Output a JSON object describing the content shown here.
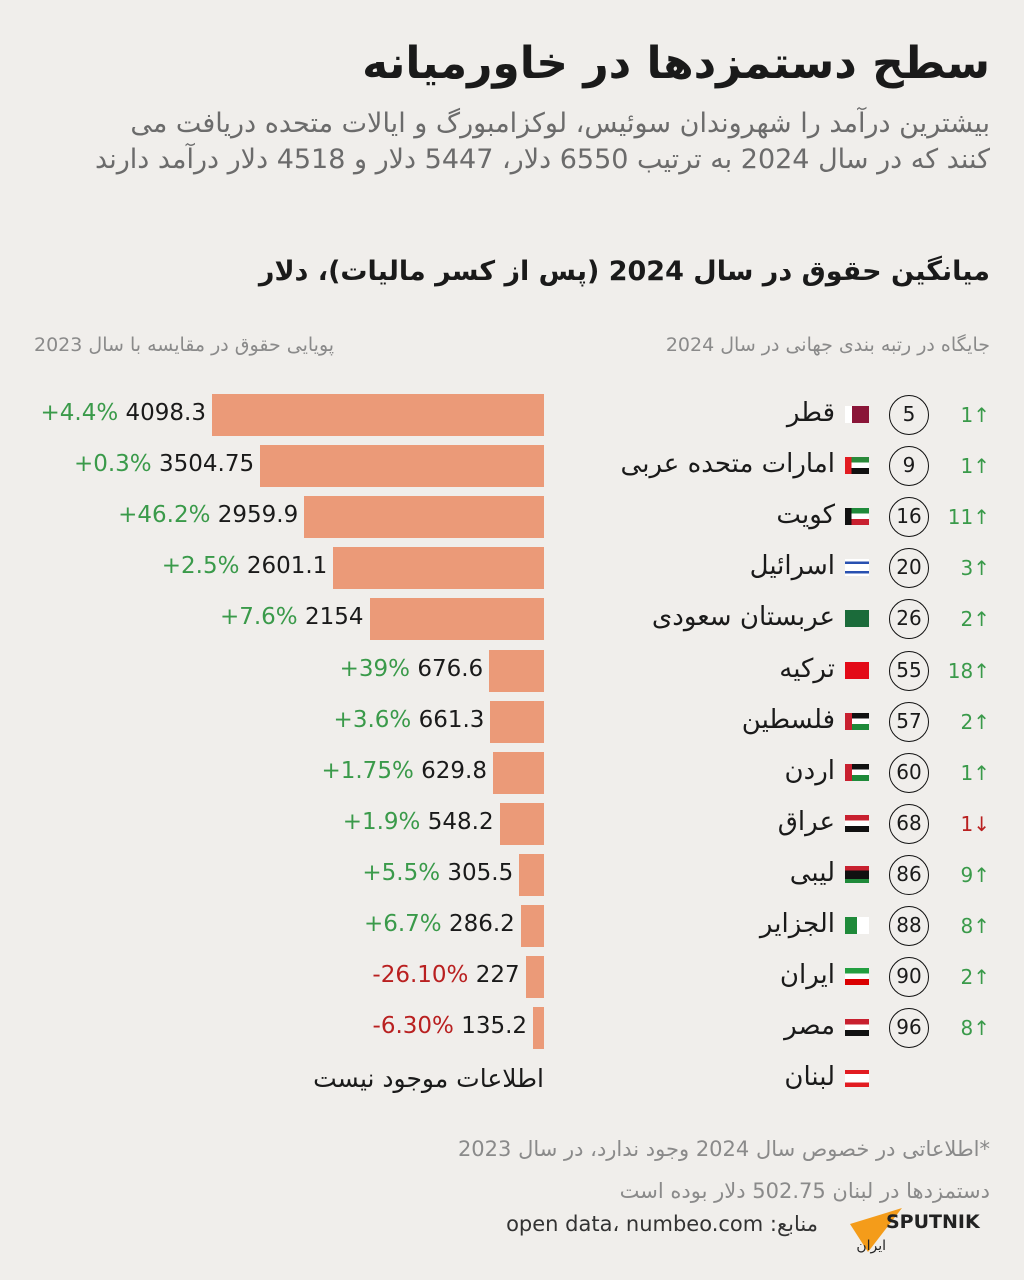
{
  "title": "سطح دستمزدها در خاورمیانه",
  "subtitle": "بیشترین درآمد را شهروندان سوئیس، لوکزامبورگ و ایالات متحده دریافت می کنند که در سال 2024 به ترتیب 6550 دلار، 5447 دلار و 4518 دلار درآمد دارند",
  "chart_data": {
    "type": "bar",
    "title": "میانگین حقوق در سال 2024 (پس از کسر مالیات)، دلار",
    "rank_header": "جایگاه در رتبه بندی جهانی در سال 2024",
    "change_header": "پویایی حقوق در مقایسه با سال 2023",
    "bar_color": "#eb9a78",
    "rows": [
      {
        "country": "قطر",
        "flag": "qatar-flag",
        "rank": "5",
        "rank_change": "1",
        "direction": "up",
        "value": 4098.3,
        "value_label": "4098.3",
        "pct": "+4.4%"
      },
      {
        "country": "امارات متحده عربی",
        "flag": "uae-flag",
        "rank": "9",
        "rank_change": "1",
        "direction": "up",
        "value": 3504.75,
        "value_label": "3504.75",
        "pct": "+0.3%"
      },
      {
        "country": "کویت",
        "flag": "kuwait-flag",
        "rank": "16",
        "rank_change": "11",
        "direction": "up",
        "value": 2959.9,
        "value_label": "2959.9",
        "pct": "+46.2%"
      },
      {
        "country": "اسرائیل",
        "flag": "israel-flag",
        "rank": "20",
        "rank_change": "3",
        "direction": "up",
        "value": 2601.1,
        "value_label": "2601.1",
        "pct": "+2.5%"
      },
      {
        "country": "عربستان سعودی",
        "flag": "saudi-flag",
        "rank": "26",
        "rank_change": "2",
        "direction": "up",
        "value": 2154,
        "value_label": "2154",
        "pct": "+7.6%"
      },
      {
        "country": "ترکیه",
        "flag": "turkey-flag",
        "rank": "55",
        "rank_change": "18",
        "direction": "up",
        "value": 676.6,
        "value_label": "676.6",
        "pct": "+39%"
      },
      {
        "country": "فلسطین",
        "flag": "palestine-flag",
        "rank": "57",
        "rank_change": "2",
        "direction": "up",
        "value": 661.3,
        "value_label": "661.3",
        "pct": "+3.6%"
      },
      {
        "country": "اردن",
        "flag": "jordan-flag",
        "rank": "60",
        "rank_change": "1",
        "direction": "up",
        "value": 629.8,
        "value_label": "629.8",
        "pct": "+1.75%"
      },
      {
        "country": "عراق",
        "flag": "iraq-flag",
        "rank": "68",
        "rank_change": "1",
        "direction": "down",
        "value": 548.2,
        "value_label": "548.2",
        "pct": "+1.9%"
      },
      {
        "country": "لیبی",
        "flag": "libya-flag",
        "rank": "86",
        "rank_change": "9",
        "direction": "up",
        "value": 305.5,
        "value_label": "305.5",
        "pct": "+5.5%"
      },
      {
        "country": "الجزایر",
        "flag": "algeria-flag",
        "rank": "88",
        "rank_change": "8",
        "direction": "up",
        "value": 286.2,
        "value_label": "286.2",
        "pct": "+6.7%"
      },
      {
        "country": "ایران",
        "flag": "iran-flag",
        "rank": "90",
        "rank_change": "2",
        "direction": "up",
        "value": 227,
        "value_label": "227",
        "pct": "-26.10%"
      },
      {
        "country": "مصر",
        "flag": "egypt-flag",
        "rank": "96",
        "rank_change": "8",
        "direction": "up",
        "value": 135.2,
        "value_label": "135.2",
        "pct": "-6.30%"
      },
      {
        "country": "لبنان",
        "flag": "lebanon-flag",
        "rank": null,
        "rank_change": null,
        "direction": null,
        "value": null,
        "value_label": "اطلاعات موجود نیست",
        "pct": null
      }
    ],
    "colors": {
      "up": "#3a9a4a",
      "down": "#b92020"
    }
  },
  "note": "*اطلاعاتی در خصوص سال 2024 وجود ندارد، در سال 2023 دستمزدها در لبنان 502.75 دلار بوده است",
  "sources": "منابع: open data، numbeo.com",
  "logo": {
    "text": "SPUTNIK",
    "sub": "ایران",
    "color": "#f49c1a"
  }
}
